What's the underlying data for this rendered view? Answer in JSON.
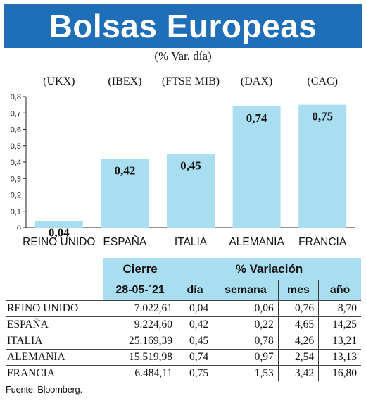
{
  "title": "Bolsas Europeas",
  "subtitle": "(% Var. día)",
  "chart_data": {
    "type": "bar",
    "categories": [
      "REINO UNIDO",
      "ESPAÑA",
      "ITALIA",
      "ALEMANIA",
      "FRANCIA"
    ],
    "index_labels": [
      "(UKX)",
      "(IBEX)",
      "(FTSE MIB)",
      "(DAX)",
      "(CAC)"
    ],
    "values": [
      0.04,
      0.42,
      0.45,
      0.74,
      0.75
    ],
    "value_labels": [
      "0,04",
      "0,42",
      "0,45",
      "0,74",
      "0,75"
    ],
    "ylim": [
      0,
      0.8
    ],
    "yticks": [
      "0",
      "0,1",
      "0,2",
      "0,3",
      "0,4",
      "0,5",
      "0,6",
      "0,7",
      "0,8"
    ],
    "bar_color": "#a9def0",
    "grid": false
  },
  "table": {
    "header_cierre": "Cierre",
    "header_variacion": "% Variación",
    "date": "28-05-´21",
    "columns": [
      "día",
      "semana",
      "mes",
      "año"
    ],
    "rows": [
      {
        "name": "REINO UNIDO",
        "cierre": "7.022,61",
        "dia": "0,04",
        "semana": "0,06",
        "mes": "0,76",
        "ano": "8,70"
      },
      {
        "name": "ESPAÑA",
        "cierre": "9.224,60",
        "dia": "0,42",
        "semana": "0,22",
        "mes": "4,65",
        "ano": "14,25"
      },
      {
        "name": "ITALIA",
        "cierre": "25.169,39",
        "dia": "0,45",
        "semana": "0,78",
        "mes": "4,26",
        "ano": "13,21"
      },
      {
        "name": "ALEMANIA",
        "cierre": "15.519,98",
        "dia": "0,74",
        "semana": "0,97",
        "mes": "2,54",
        "ano": "13,13"
      },
      {
        "name": "FRANCIA",
        "cierre": "6.484,11",
        "dia": "0,75",
        "semana": "1,53",
        "mes": "3,42",
        "ano": "16,80"
      }
    ]
  },
  "source": "Fuente: Bloomberg."
}
